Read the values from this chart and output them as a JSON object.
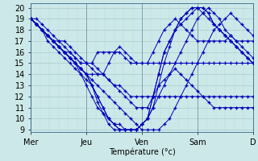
{
  "xlabel": "Température (°c)",
  "xlim": [
    0,
    96
  ],
  "ylim": [
    9,
    20
  ],
  "yticks": [
    9,
    10,
    11,
    12,
    13,
    14,
    15,
    16,
    17,
    18,
    19,
    20
  ],
  "xtick_positions": [
    0,
    24,
    48,
    72,
    96
  ],
  "xtick_labels": [
    "Mer",
    "Jeu",
    "Ven",
    "Sam",
    "D"
  ],
  "bg_color": "#cce8e8",
  "grid_color_major": "#aacccc",
  "grid_color_minor": "#bbdddd",
  "line_color": "#0000bb",
  "marker": "+",
  "series": [
    [
      19,
      19,
      18.5,
      18,
      17.5,
      17,
      17,
      16.5,
      16,
      15.5,
      15,
      14.5,
      14,
      14,
      15,
      16,
      16.5,
      16,
      15.5,
      15,
      15,
      15,
      16,
      17,
      18,
      18.5,
      19,
      18.5,
      18,
      17.5,
      17,
      17,
      17,
      17,
      17,
      17,
      17.5,
      17,
      17,
      17,
      17
    ],
    [
      19,
      18.5,
      18,
      17.5,
      17,
      16.5,
      16,
      16,
      15.5,
      15,
      15,
      15,
      16,
      16,
      16,
      16,
      16,
      15.5,
      15,
      15,
      15,
      15,
      15,
      15,
      15,
      15,
      15,
      15,
      15,
      15,
      15,
      15,
      15,
      15,
      15,
      15,
      15,
      15,
      15,
      15,
      15
    ],
    [
      19,
      18.5,
      18,
      17.5,
      17,
      16.5,
      16,
      15.5,
      15,
      14.5,
      14,
      13.5,
      13,
      12.5,
      12,
      11.5,
      11,
      10.5,
      10,
      9.5,
      9,
      9,
      9,
      9,
      9.5,
      10,
      11,
      12,
      13,
      14,
      15,
      16,
      17,
      18,
      18.5,
      19,
      19.5,
      19,
      18.5,
      18,
      17.5
    ],
    [
      19,
      18.5,
      18,
      17.5,
      17,
      16.5,
      16,
      15.5,
      15,
      14,
      13,
      12,
      11,
      10.5,
      10,
      9.5,
      9,
      9,
      9,
      9,
      9.5,
      10,
      11,
      12,
      13,
      14,
      15,
      16,
      17,
      18,
      19,
      19.5,
      20,
      19.5,
      19,
      18,
      17.5,
      17,
      16.5,
      16,
      15.5
    ],
    [
      19,
      18.5,
      18,
      17,
      16.5,
      16,
      15.5,
      15,
      14.5,
      14,
      13.5,
      13,
      12,
      11,
      10,
      9.5,
      9,
      9,
      9,
      9,
      9.5,
      10,
      11,
      13,
      15,
      16.5,
      18,
      19,
      19.5,
      20,
      20,
      19.5,
      19,
      18.5,
      18,
      17.5,
      17,
      16.5,
      16,
      15.5,
      15
    ],
    [
      19,
      18.5,
      18,
      17.5,
      17,
      16.5,
      16,
      15.5,
      15,
      14.5,
      14,
      13,
      12,
      11,
      10,
      9.5,
      9.5,
      9,
      9,
      9,
      9.5,
      10,
      12,
      14,
      16,
      17,
      18,
      18.5,
      19,
      19.5,
      20,
      20,
      19.5,
      18.5,
      18,
      17.5,
      17,
      16.5,
      16,
      15.5,
      15
    ],
    [
      19,
      18.5,
      18,
      17.5,
      17,
      16.5,
      16,
      15.5,
      15,
      14.5,
      14,
      13,
      11.5,
      10.5,
      9.5,
      9,
      9,
      9,
      9,
      9,
      9.5,
      10,
      12,
      14,
      16,
      17,
      18,
      19,
      19.5,
      20,
      20,
      20,
      19.5,
      18.5,
      18,
      17.5,
      17,
      16.5,
      16,
      15.5,
      15
    ],
    [
      19,
      18.5,
      18,
      17.5,
      17,
      17,
      16.5,
      16,
      15.5,
      15,
      15,
      15,
      14.5,
      14,
      13.5,
      13,
      12.5,
      12,
      11.5,
      11,
      11,
      11,
      12,
      13,
      13.5,
      14,
      14.5,
      14,
      13.5,
      13,
      12.5,
      12,
      11.5,
      11,
      11,
      11,
      11,
      11,
      11,
      11,
      11
    ],
    [
      19,
      18.5,
      18,
      17.5,
      17,
      16.5,
      16,
      15.5,
      15,
      14.5,
      14,
      14,
      14,
      14,
      13.5,
      13,
      13,
      12.5,
      12,
      12,
      12,
      12,
      12,
      12,
      12,
      12,
      12,
      12,
      12,
      12,
      12,
      12,
      12,
      12,
      12,
      12,
      12,
      12,
      12,
      12,
      12
    ]
  ]
}
